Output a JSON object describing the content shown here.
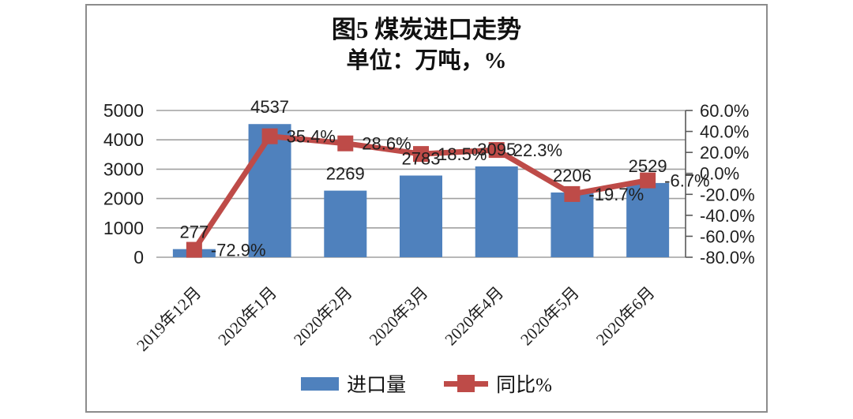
{
  "figure": {
    "title": "图5 煤炭进口走势",
    "subtitle": "单位：万吨，%"
  },
  "chart_data": {
    "type": "bar+line combo",
    "title": "图5 煤炭进口走势",
    "subtitle": "单位：万吨，%",
    "categories": [
      "2019年12月",
      "2020年1月",
      "2020年2月",
      "2020年3月",
      "2020年4月",
      "2020年5月",
      "2020年6月"
    ],
    "series": [
      {
        "name": "进口量",
        "type": "bar",
        "axis": "left",
        "color": "#4f81bd",
        "values": [
          277,
          4537,
          2269,
          2783,
          3095,
          2206,
          2529
        ],
        "labels": [
          "277",
          "4537",
          "2269",
          "2783",
          "3095",
          "2206",
          "2529"
        ]
      },
      {
        "name": "同比%",
        "type": "line",
        "axis": "right",
        "color": "#be4b48",
        "values": [
          -72.9,
          35.4,
          28.6,
          18.5,
          22.3,
          -19.7,
          -6.7
        ],
        "labels": [
          "-72.9%",
          "35.4%",
          "28.6%",
          "18.5%",
          "22.3%",
          "-19.7%",
          "-6.7%"
        ]
      }
    ],
    "left_axis": {
      "min": 0,
      "max": 5000,
      "step": 1000,
      "tick_labels": [
        "0",
        "1000",
        "2000",
        "3000",
        "4000",
        "5000"
      ]
    },
    "right_axis": {
      "min": -80,
      "max": 60,
      "step": 20,
      "tick_labels": [
        "60.0%",
        "40.0%",
        "20.0%",
        "0.0%",
        "-20.0%",
        "-40.0%",
        "-60.0%",
        "-80.0%"
      ]
    },
    "grid": true,
    "legend_position": "bottom",
    "colors": {
      "grid": "#a0a0a0",
      "axis": "#595959",
      "text": "#1f1f1f"
    }
  }
}
